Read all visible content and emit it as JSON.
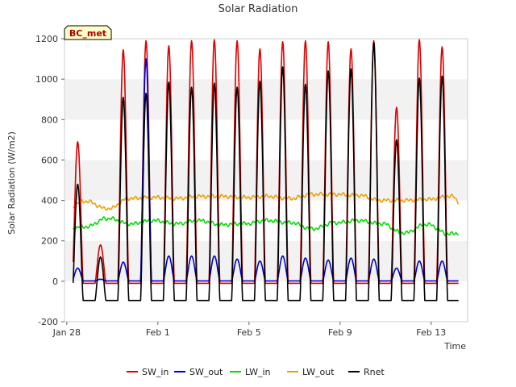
{
  "chart_data": {
    "type": "line",
    "title": "Solar Radiation",
    "badge": "BC_met",
    "xlabel": "Time",
    "ylabel": "Solar Radiation (W/m2)",
    "xlim": [
      -0.1,
      17.6
    ],
    "ylim": [
      -200,
      1200
    ],
    "yticks": [
      -200,
      0,
      200,
      400,
      600,
      800,
      1000,
      1200
    ],
    "xticks": [
      {
        "label": "Jan 28",
        "day": 0
      },
      {
        "label": "Feb 1",
        "day": 4
      },
      {
        "label": "Feb 5",
        "day": 8
      },
      {
        "label": "Feb 9",
        "day": 12
      },
      {
        "label": "Feb 13",
        "day": 16
      }
    ],
    "grid": "horizontal bands",
    "legend_position": "bottom",
    "noon_offset": 0.48,
    "series": [
      {
        "name": "SW_in",
        "color": "#dd0000",
        "night": -10,
        "peaks": [
          690,
          180,
          1145,
          1190,
          1165,
          1190,
          1195,
          1190,
          1150,
          1185,
          1190,
          1185,
          1150,
          1190,
          860,
          1195,
          1160
        ]
      },
      {
        "name": "SW_out",
        "color": "#0000cc",
        "night": 2,
        "peaks": [
          65,
          10,
          95,
          1100,
          125,
          125,
          125,
          110,
          100,
          125,
          115,
          105,
          115,
          110,
          65,
          100,
          100
        ]
      },
      {
        "name": "LW_in",
        "color": "#00dd00",
        "start": 255,
        "levels": [
          270,
          310,
          285,
          300,
          285,
          300,
          280,
          285,
          300,
          290,
          260,
          290,
          300,
          285,
          240,
          280,
          235,
          245
        ]
      },
      {
        "name": "LW_out",
        "color": "#eea000",
        "start": 345,
        "levels": [
          395,
          360,
          410,
          415,
          410,
          420,
          420,
          415,
          420,
          410,
          430,
          430,
          425,
          400,
          400,
          405,
          420,
          330
        ]
      },
      {
        "name": "Rnet",
        "color": "#000000",
        "night": -95,
        "peaks": [
          480,
          120,
          910,
          930,
          985,
          960,
          980,
          960,
          990,
          1060,
          975,
          1040,
          1050,
          1180,
          700,
          1005,
          1015
        ]
      }
    ]
  }
}
